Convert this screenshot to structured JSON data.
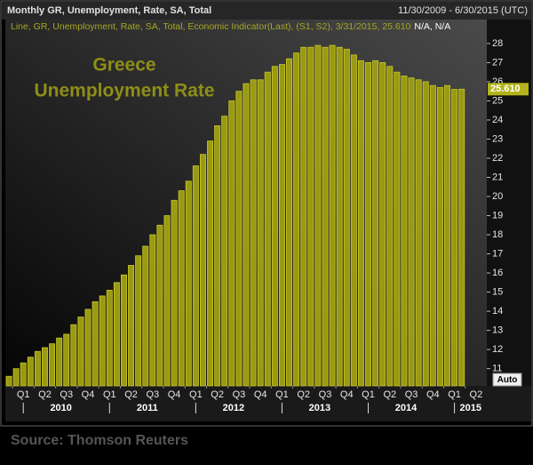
{
  "chart_data": {
    "type": "bar",
    "title": "Monthly GR, Unemployment, Rate, SA, Total",
    "date_range": "11/30/2009 - 6/30/2015 (UTC)",
    "legend": "Line, GR, Unemployment, Rate, SA, Total, Economic Indicator(Last), (S1, S2), 3/31/2015, 25.610",
    "legend_extra": "N/A, N/A",
    "annotation": [
      "Greece",
      "Unemployment Rate"
    ],
    "values": [
      10.6,
      11.0,
      11.3,
      11.6,
      11.9,
      12.1,
      12.3,
      12.6,
      12.8,
      13.3,
      13.7,
      14.1,
      14.5,
      14.8,
      15.1,
      15.5,
      15.9,
      16.4,
      16.9,
      17.4,
      18.0,
      18.5,
      19.0,
      19.8,
      20.3,
      20.8,
      21.6,
      22.2,
      22.9,
      23.7,
      24.2,
      25.0,
      25.5,
      25.9,
      26.1,
      26.1,
      26.5,
      26.8,
      26.9,
      27.2,
      27.5,
      27.8,
      27.8,
      27.9,
      27.8,
      27.9,
      27.8,
      27.7,
      27.4,
      27.1,
      27.0,
      27.1,
      27.0,
      26.8,
      26.5,
      26.3,
      26.2,
      26.1,
      26.0,
      25.8,
      25.7,
      25.8,
      25.6,
      25.61,
      null,
      null,
      null
    ],
    "value_labels": [
      null,
      null,
      null,
      null,
      null,
      null,
      null,
      null,
      null,
      null,
      null,
      null,
      null,
      null,
      null,
      null,
      null,
      null,
      null,
      null,
      null,
      null,
      null,
      null,
      null,
      null,
      null,
      null,
      null,
      null,
      null,
      null,
      null,
      null,
      null,
      null,
      null,
      null,
      null,
      null,
      null,
      null,
      null,
      null,
      null,
      null,
      null,
      null,
      null,
      null,
      null,
      null,
      null,
      null,
      null,
      null,
      null,
      null,
      null,
      null,
      null,
      null,
      null,
      "25.610",
      null,
      null,
      null
    ],
    "color": "#9a9a12",
    "edge_color": "#c9c92a",
    "quarters": [
      "Q1",
      "Q2",
      "Q3",
      "Q4",
      "Q1",
      "Q2",
      "Q3",
      "Q4",
      "Q1",
      "Q2",
      "Q3",
      "Q4",
      "Q1",
      "Q2",
      "Q3",
      "Q4",
      "Q1",
      "Q2",
      "Q3",
      "Q4",
      "Q1",
      "Q2"
    ],
    "years": [
      "2010",
      "2011",
      "2012",
      "2013",
      "2014",
      "2015"
    ],
    "ylim": [
      10.1,
      29.25
    ],
    "yticks": [
      11,
      12,
      13,
      14,
      15,
      16,
      17,
      18,
      19,
      20,
      21,
      22,
      23,
      24,
      25,
      26,
      27,
      28
    ],
    "grid": false,
    "auto_button": "Auto",
    "source": "Source: Thomson Reuters"
  }
}
